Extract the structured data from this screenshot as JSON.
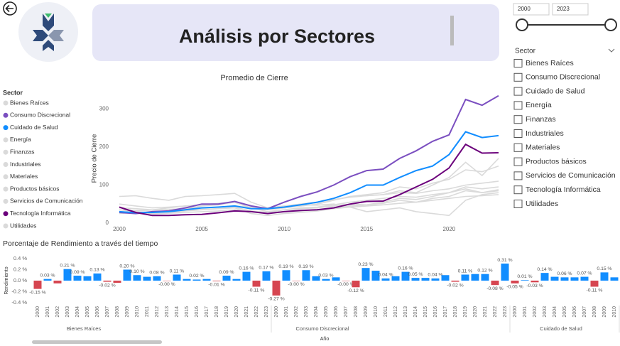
{
  "header": {
    "title": "Análisis por Sectores"
  },
  "filters": {
    "year_from": "2000",
    "year_to": "2023",
    "sector_label": "Sector",
    "sectors": [
      "Bienes Raíces",
      "Consumo Discrecional",
      "Cuidado de Salud",
      "Energía",
      "Finanzas",
      "Industriales",
      "Materiales",
      "Productos básicos",
      "Servicios de Comunicación",
      "Tecnología Informática",
      "Utilidades"
    ]
  },
  "chart_data": [
    {
      "type": "line",
      "title": "Promedio de Cierre",
      "y_label": "Precio de Cierre",
      "legend_title": "Sector",
      "x": [
        2000,
        2001,
        2002,
        2003,
        2004,
        2005,
        2006,
        2007,
        2008,
        2009,
        2010,
        2011,
        2012,
        2013,
        2014,
        2015,
        2016,
        2017,
        2018,
        2019,
        2020,
        2021,
        2022,
        2023
      ],
      "xlim": [
        2000,
        2023
      ],
      "xticks": [
        2000,
        2005,
        2010,
        2015,
        2020
      ],
      "ylim": [
        0,
        340
      ],
      "yticks": [
        0,
        100,
        200,
        300
      ],
      "series": [
        {
          "name": "Bienes Raíces",
          "color": "#dadada",
          "values": [
            25,
            28,
            30,
            32,
            38,
            45,
            48,
            55,
            40,
            30,
            35,
            40,
            42,
            48,
            55,
            60,
            65,
            70,
            68,
            75,
            80,
            90,
            80,
            85
          ]
        },
        {
          "name": "Consumo Discrecional",
          "color": "#7b4fc0",
          "values": [
            28,
            25,
            30,
            32,
            40,
            50,
            50,
            57,
            45,
            38,
            55,
            70,
            82,
            100,
            122,
            138,
            142,
            170,
            190,
            215,
            232,
            325,
            310,
            335
          ]
        },
        {
          "name": "Cuidado de Salud",
          "color": "#118dff",
          "values": [
            30,
            27,
            28,
            30,
            35,
            40,
            42,
            45,
            38,
            38,
            42,
            48,
            55,
            65,
            80,
            100,
            100,
            120,
            138,
            150,
            180,
            240,
            225,
            230
          ]
        },
        {
          "name": "Energía",
          "color": "#dadada",
          "values": [
            70,
            72,
            65,
            60,
            70,
            72,
            75,
            78,
            55,
            40,
            45,
            48,
            47,
            50,
            42,
            30,
            35,
            40,
            30,
            25,
            20,
            60,
            75,
            80
          ]
        },
        {
          "name": "Finanzas",
          "color": "#dadada",
          "values": [
            35,
            30,
            28,
            30,
            33,
            36,
            38,
            40,
            25,
            20,
            25,
            28,
            32,
            38,
            45,
            48,
            52,
            60,
            55,
            65,
            70,
            85,
            80,
            88
          ]
        },
        {
          "name": "Industriales",
          "color": "#dadada",
          "values": [
            40,
            38,
            35,
            40,
            45,
            48,
            52,
            55,
            40,
            35,
            40,
            45,
            50,
            60,
            70,
            75,
            80,
            95,
            90,
            105,
            115,
            140,
            135,
            150
          ]
        },
        {
          "name": "Materiales",
          "color": "#dadada",
          "values": [
            30,
            28,
            26,
            28,
            32,
            35,
            38,
            42,
            32,
            28,
            35,
            38,
            40,
            45,
            50,
            48,
            55,
            65,
            62,
            70,
            80,
            95,
            90,
            95
          ]
        },
        {
          "name": "Productos básicos",
          "color": "#dadada",
          "values": [
            35,
            33,
            34,
            36,
            38,
            40,
            42,
            45,
            42,
            40,
            45,
            50,
            55,
            62,
            68,
            72,
            75,
            80,
            78,
            85,
            90,
            100,
            105,
            110
          ]
        },
        {
          "name": "Servicios de Comunicación",
          "color": "#dadada",
          "values": [
            50,
            45,
            40,
            42,
            45,
            48,
            50,
            55,
            40,
            35,
            40,
            45,
            50,
            60,
            70,
            72,
            75,
            85,
            80,
            100,
            120,
            160,
            125,
            170
          ]
        },
        {
          "name": "Tecnología Informática",
          "color": "#6b007b",
          "values": [
            42,
            28,
            20,
            20,
            22,
            23,
            27,
            32,
            30,
            25,
            30,
            33,
            35,
            40,
            50,
            57,
            58,
            75,
            95,
            115,
            145,
            207,
            184,
            185
          ]
        },
        {
          "name": "Utilidades",
          "color": "#dadada",
          "values": [
            28,
            25,
            24,
            26,
            28,
            30,
            32,
            35,
            30,
            28,
            30,
            32,
            35,
            38,
            42,
            45,
            48,
            52,
            55,
            60,
            65,
            70,
            72,
            75
          ]
        }
      ]
    },
    {
      "type": "grouped_bar",
      "title": "Porcentaje de Rendimiento a través del tiempo",
      "y_label": "Rendimiento",
      "x_label": "Año",
      "positive_color": "#118dff",
      "negative_color": "#d64550",
      "ylim": [
        -0.4,
        0.4
      ],
      "yticks": [
        {
          "value": 0.4,
          "label": "0.4 %"
        },
        {
          "value": 0.2,
          "label": "0.2 %"
        },
        {
          "value": 0,
          "label": "0.0 %"
        },
        {
          "value": -0.2,
          "label": "-0.2 %"
        },
        {
          "value": -0.4,
          "label": "-0.4 %"
        }
      ],
      "groups": [
        {
          "name": "Bienes Raíces",
          "categories": [
            "2000",
            "2001",
            "2002",
            "2003",
            "2004",
            "2005",
            "2006",
            "2007",
            "2008",
            "2009",
            "2010",
            "2011",
            "2012",
            "2013",
            "2014",
            "2015",
            "2016",
            "2017",
            "2018",
            "2019",
            "2020",
            "2021",
            "2022",
            "2023"
          ],
          "values": [
            -0.15,
            0.03,
            -0.05,
            0.21,
            0.09,
            0.08,
            0.13,
            -0.02,
            -0.04,
            0.2,
            0.1,
            0.07,
            0.08,
            -0.001,
            0.11,
            0.03,
            0.02,
            0.03,
            -0.01,
            0.09,
            0.03,
            0.16,
            -0.11,
            0.17
          ],
          "value_labels": [
            "-0.15 %",
            "0.03 %",
            null,
            "0.21 %",
            "0.09 %",
            null,
            "0.13 %",
            "-0.02 %",
            null,
            "0.20 %",
            "0.10 %",
            null,
            "0.08 %",
            "-0.00 %",
            "0.11 %",
            null,
            "0.02 %",
            null,
            "-0.01 %",
            "0.09 %",
            null,
            "0.16 %",
            "-0.11 %",
            "0.17 %"
          ]
        },
        {
          "name": "Consumo Discrecional",
          "categories": [
            "2000",
            "2001",
            "2002",
            "2003",
            "2004",
            "2005",
            "2006",
            "2007",
            "2008",
            "2009",
            "2010",
            "2011",
            "2012",
            "2013",
            "2014",
            "2015",
            "2016",
            "2017",
            "2018",
            "2019",
            "2020",
            "2021",
            "2022",
            "2023"
          ],
          "values": [
            -0.27,
            0.19,
            -0.001,
            0.19,
            0.08,
            0.03,
            0.06,
            -0.001,
            -0.12,
            0.23,
            0.18,
            0.04,
            0.08,
            0.16,
            0.05,
            0.05,
            0.04,
            0.1,
            -0.02,
            0.11,
            0.12,
            0.12,
            -0.08,
            0.31
          ],
          "value_labels": [
            "-0.27 %",
            "0.19 %",
            "-0.00 %",
            "0.19 %",
            null,
            "0.03 %",
            null,
            "-0.00 %",
            "-0.12 %",
            "0.23 %",
            null,
            "0.04 %",
            null,
            "0.16 %",
            "0.05 %",
            null,
            "0.04 %",
            null,
            "-0.02 %",
            "0.11 %",
            null,
            "0.12 %",
            "-0.08 %",
            "0.31 %"
          ]
        },
        {
          "name": "Cuidado de Salud",
          "categories": [
            "2000",
            "2001",
            "2002",
            "2003",
            "2004",
            "2005",
            "2006",
            "2007",
            "2008",
            "2009",
            "2010"
          ],
          "values": [
            -0.05,
            0.01,
            -0.03,
            0.14,
            0.07,
            0.06,
            0.06,
            0.07,
            -0.11,
            0.15,
            0.06
          ],
          "value_labels": [
            "-0.05 %",
            "0.01 %",
            "-0.03 %",
            "0.14 %",
            null,
            "0.06 %",
            null,
            "0.07 %",
            "-0.11 %",
            "0.15 %",
            null
          ]
        }
      ]
    }
  ]
}
